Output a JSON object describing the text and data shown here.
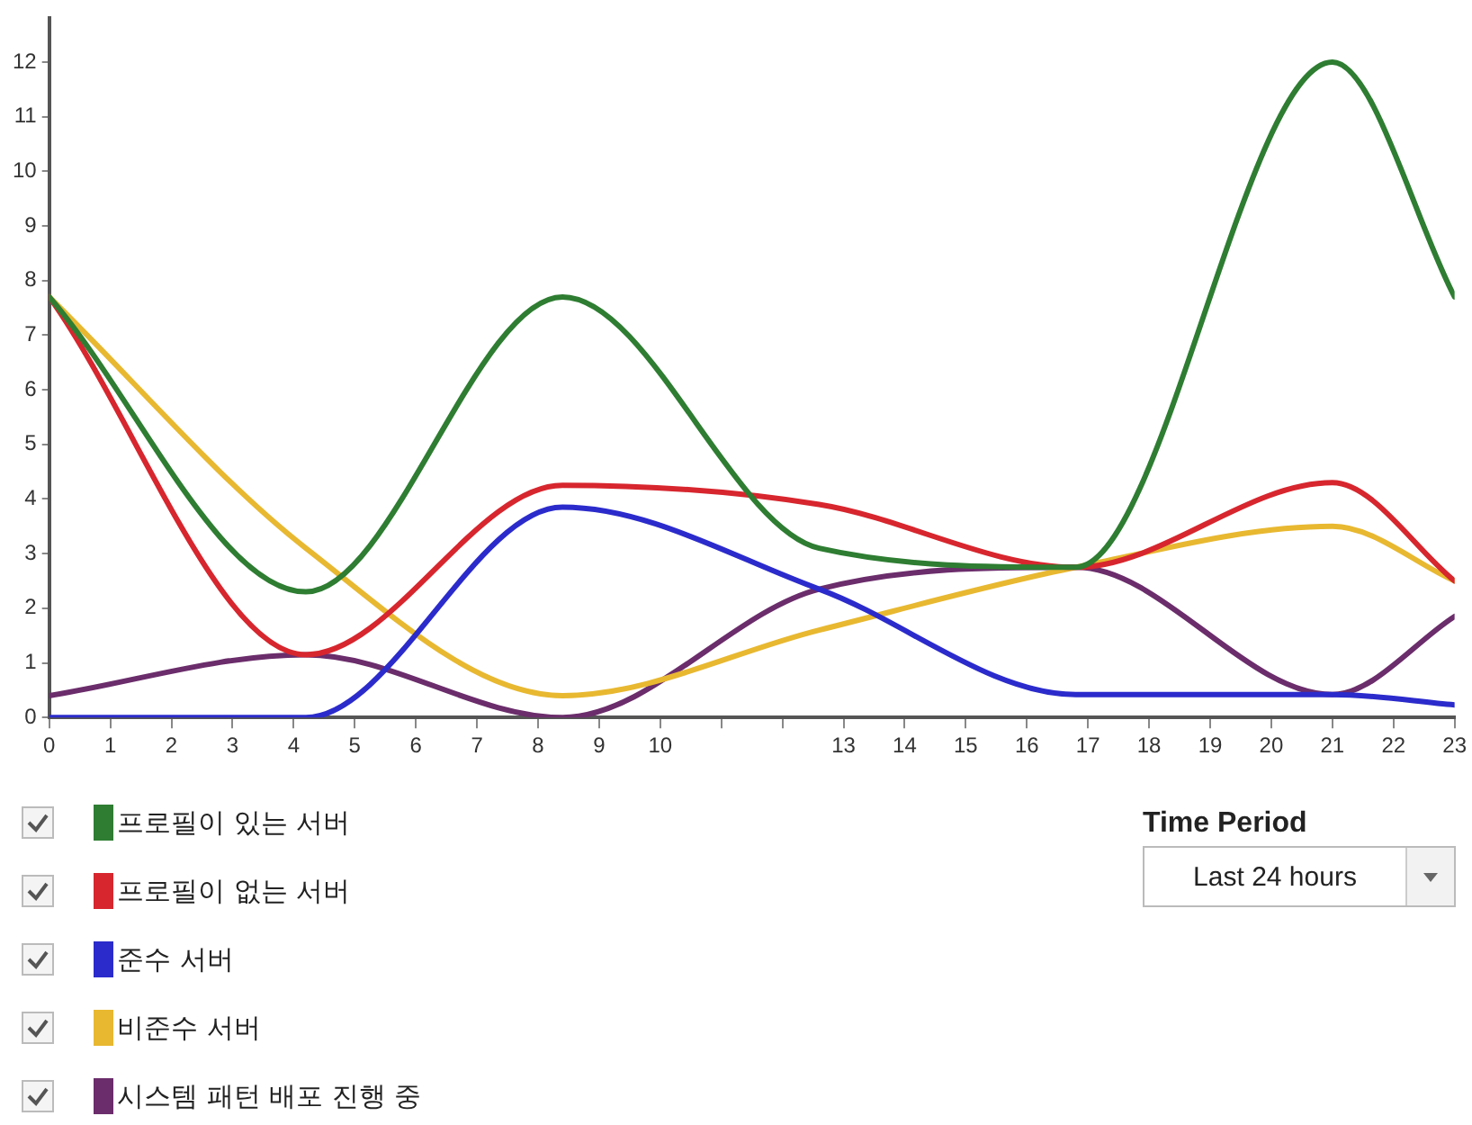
{
  "chart_data": {
    "type": "line",
    "x": [
      0,
      4.2,
      8.4,
      12.6,
      16.8,
      21,
      23
    ],
    "series": [
      {
        "name": "프로필이 있는 서버",
        "color": "#2e7d32",
        "values": [
          7.7,
          2.3,
          7.7,
          3.1,
          2.75,
          12,
          7.7
        ]
      },
      {
        "name": "프로필이 없는 서버",
        "color": "#d7262e",
        "values": [
          7.7,
          1.15,
          4.25,
          3.9,
          2.75,
          4.3,
          2.5
        ]
      },
      {
        "name": "준수 서버",
        "color": "#2b2bcc",
        "values": [
          0,
          0,
          3.85,
          2.35,
          0.42,
          0.42,
          0.23
        ]
      },
      {
        "name": "비준수 서버",
        "color": "#e8b830",
        "values": [
          7.7,
          3.1,
          0.4,
          1.6,
          2.75,
          3.5,
          2.5
        ]
      },
      {
        "name": "시스템 패턴 배포 진행 중",
        "color": "#6b2d6b",
        "values": [
          0.4,
          1.15,
          0,
          2.35,
          2.75,
          0.42,
          1.85
        ]
      }
    ],
    "xlim": [
      0,
      23
    ],
    "xticks": [
      0,
      1,
      2,
      3,
      4,
      5,
      6,
      7,
      8,
      9,
      10,
      {
        "value": 11,
        "label": null
      },
      {
        "value": 12,
        "label": null
      },
      13,
      14,
      15,
      16,
      17,
      18,
      19,
      20,
      21,
      22,
      23
    ],
    "ylim": [
      0,
      12.8
    ],
    "yticks": [
      0,
      1,
      2,
      3,
      4,
      5,
      6,
      7,
      8,
      9,
      10,
      11,
      12
    ],
    "grid": false,
    "legend": "bottom left",
    "marker": "none",
    "line_style": "solid",
    "annotations": [
      "Time Period",
      "Last 24 hours"
    ]
  }
}
